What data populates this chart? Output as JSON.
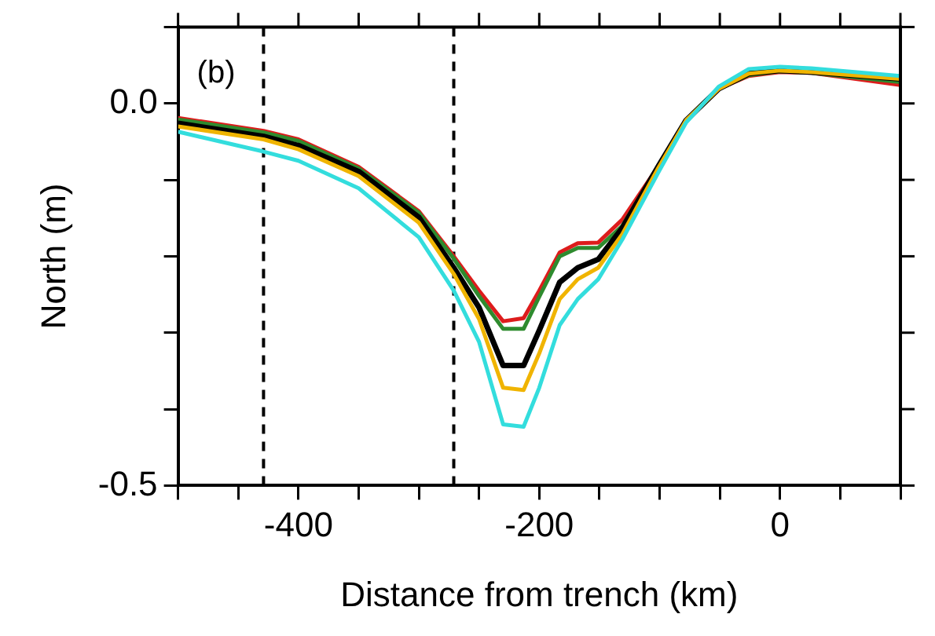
{
  "chart_data": {
    "type": "line",
    "xlabel": "Distance from trench (km)",
    "ylabel": "North (m)",
    "annotations": [
      "(b)"
    ],
    "xlim": [
      -500,
      100
    ],
    "xticks": [
      {
        "value": -500,
        "label": null
      },
      {
        "value": -450,
        "label": null
      },
      -400,
      {
        "value": -350,
        "label": null
      },
      {
        "value": -300,
        "label": null
      },
      {
        "value": -250,
        "label": null
      },
      -200,
      {
        "value": -150,
        "label": null
      },
      {
        "value": -100,
        "label": null
      },
      {
        "value": -50,
        "label": null
      },
      0,
      {
        "value": 50,
        "label": null
      },
      {
        "value": 100,
        "label": null
      }
    ],
    "ylim": [
      -0.5,
      0.1
    ],
    "yticks": [
      -0.5,
      {
        "value": -0.4,
        "label": null
      },
      {
        "value": -0.3,
        "label": null
      },
      {
        "value": -0.2,
        "label": null
      },
      {
        "value": -0.1,
        "label": null
      },
      {
        "value": 0,
        "label": "0.0"
      },
      {
        "value": 0.1,
        "label": null
      }
    ],
    "ref_lines": [
      {
        "axis": "x",
        "value": -429,
        "color": "#000000",
        "line_style": "dashed"
      },
      {
        "axis": "x",
        "value": -271,
        "color": "#000000",
        "line_style": "dashed"
      }
    ],
    "x": [
      -500,
      -429,
      -400,
      -350,
      -300,
      -271,
      -250,
      -230,
      -213,
      -200,
      -183,
      -168,
      -151,
      -131,
      -101,
      -78,
      -51,
      -26,
      0,
      26,
      100
    ],
    "series": [
      {
        "color": "#33dddd",
        "values": [
          -0.037,
          -0.063,
          -0.075,
          -0.111,
          -0.175,
          -0.245,
          -0.312,
          -0.42,
          -0.423,
          -0.372,
          -0.29,
          -0.256,
          -0.23,
          -0.178,
          -0.09,
          -0.025,
          0.022,
          0.045,
          0.048,
          0.046,
          0.036
        ]
      },
      {
        "color": "#f0b400",
        "values": [
          -0.03,
          -0.047,
          -0.06,
          -0.095,
          -0.156,
          -0.223,
          -0.282,
          -0.372,
          -0.375,
          -0.327,
          -0.256,
          -0.23,
          -0.215,
          -0.171,
          -0.084,
          -0.022,
          0.019,
          0.039,
          0.043,
          0.041,
          0.032
        ]
      },
      {
        "color": "#000000",
        "values": [
          -0.026,
          -0.043,
          -0.055,
          -0.089,
          -0.149,
          -0.215,
          -0.267,
          -0.343,
          -0.343,
          -0.297,
          -0.234,
          -0.215,
          -0.204,
          -0.163,
          -0.082,
          -0.022,
          0.019,
          0.039,
          0.043,
          0.041,
          0.032
        ]
      },
      {
        "color": "#2e8b2e",
        "values": [
          -0.021,
          -0.038,
          -0.049,
          -0.085,
          -0.143,
          -0.203,
          -0.252,
          -0.295,
          -0.295,
          -0.253,
          -0.2,
          -0.189,
          -0.189,
          -0.16,
          -0.082,
          -0.022,
          0.019,
          0.037,
          0.042,
          0.04,
          0.028
        ]
      },
      {
        "color": "#dd1c1c",
        "values": [
          -0.019,
          -0.036,
          -0.047,
          -0.083,
          -0.141,
          -0.2,
          -0.245,
          -0.285,
          -0.281,
          -0.245,
          -0.195,
          -0.183,
          -0.182,
          -0.152,
          -0.082,
          -0.022,
          0.019,
          0.036,
          0.041,
          0.04,
          0.024
        ]
      }
    ],
    "legend": false,
    "grid": false,
    "marker": "none",
    "line_style": "solid"
  }
}
